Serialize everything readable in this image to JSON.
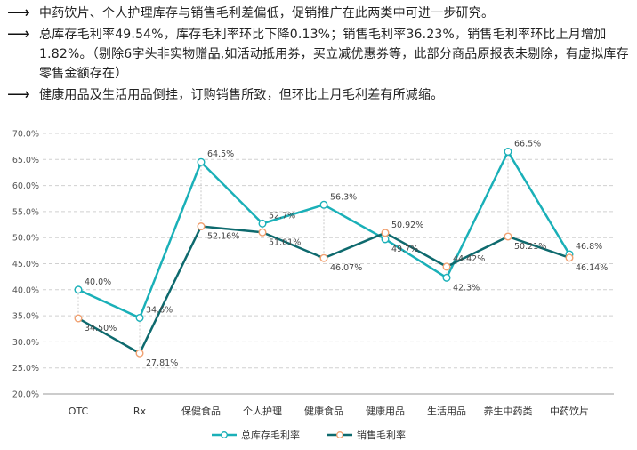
{
  "notes": [
    {
      "arrow": "⟶",
      "text": "中药饮片、个人护理库存与销售毛利差偏低，促销推广在此两类中可进一步研究。"
    },
    {
      "arrow": "⟶",
      "text": "总库存毛利率49.54%，库存毛利率环比下降0.13%；销售毛利率36.23%，销售毛利率环比上月增加1.82%。（剔除6字头非实物赠品,如活动抵用券，买立减优惠券等，此部分商品原报表未剔除，有虚拟库存零售金额存在）"
    },
    {
      "arrow": "⟶",
      "text": "健康用品及生活用品倒挂，订购销售所致，但环比上月毛利差有所减缩。"
    }
  ],
  "chart_data": {
    "type": "line",
    "categories": [
      "OTC",
      "Rx",
      "保健食品",
      "个人护理",
      "健康食品",
      "健康用品",
      "生活用品",
      "养生中药类",
      "中药饮片"
    ],
    "series": [
      {
        "name": "总库存毛利率",
        "color": "#1ab0b8",
        "values": [
          40.0,
          34.6,
          64.5,
          52.7,
          56.3,
          49.7,
          42.3,
          66.5,
          46.8
        ],
        "labels": [
          "40.0%",
          "34.6%",
          "64.5%",
          "52.7%",
          "56.3%",
          "49.7%",
          "42.3%",
          "66.5%",
          "46.8%"
        ]
      },
      {
        "name": "销售毛利率",
        "color": "#0e6a6e",
        "values": [
          34.5,
          27.81,
          52.16,
          51.01,
          46.07,
          50.92,
          44.42,
          50.21,
          46.14
        ],
        "labels": [
          "34.50%",
          "27.81%",
          "52.16%",
          "51.01%",
          "46.07%",
          "50.92%",
          "44.42%",
          "50.21%",
          "46.14%"
        ]
      }
    ],
    "yticks": [
      "20.0%",
      "25.0%",
      "30.0%",
      "35.0%",
      "40.0%",
      "45.0%",
      "50.0%",
      "55.0%",
      "60.0%",
      "65.0%",
      "70.0%"
    ],
    "ylim": [
      20,
      70
    ],
    "grid": true,
    "legend_position": "bottom-center",
    "marker_color": "#f0a070"
  }
}
